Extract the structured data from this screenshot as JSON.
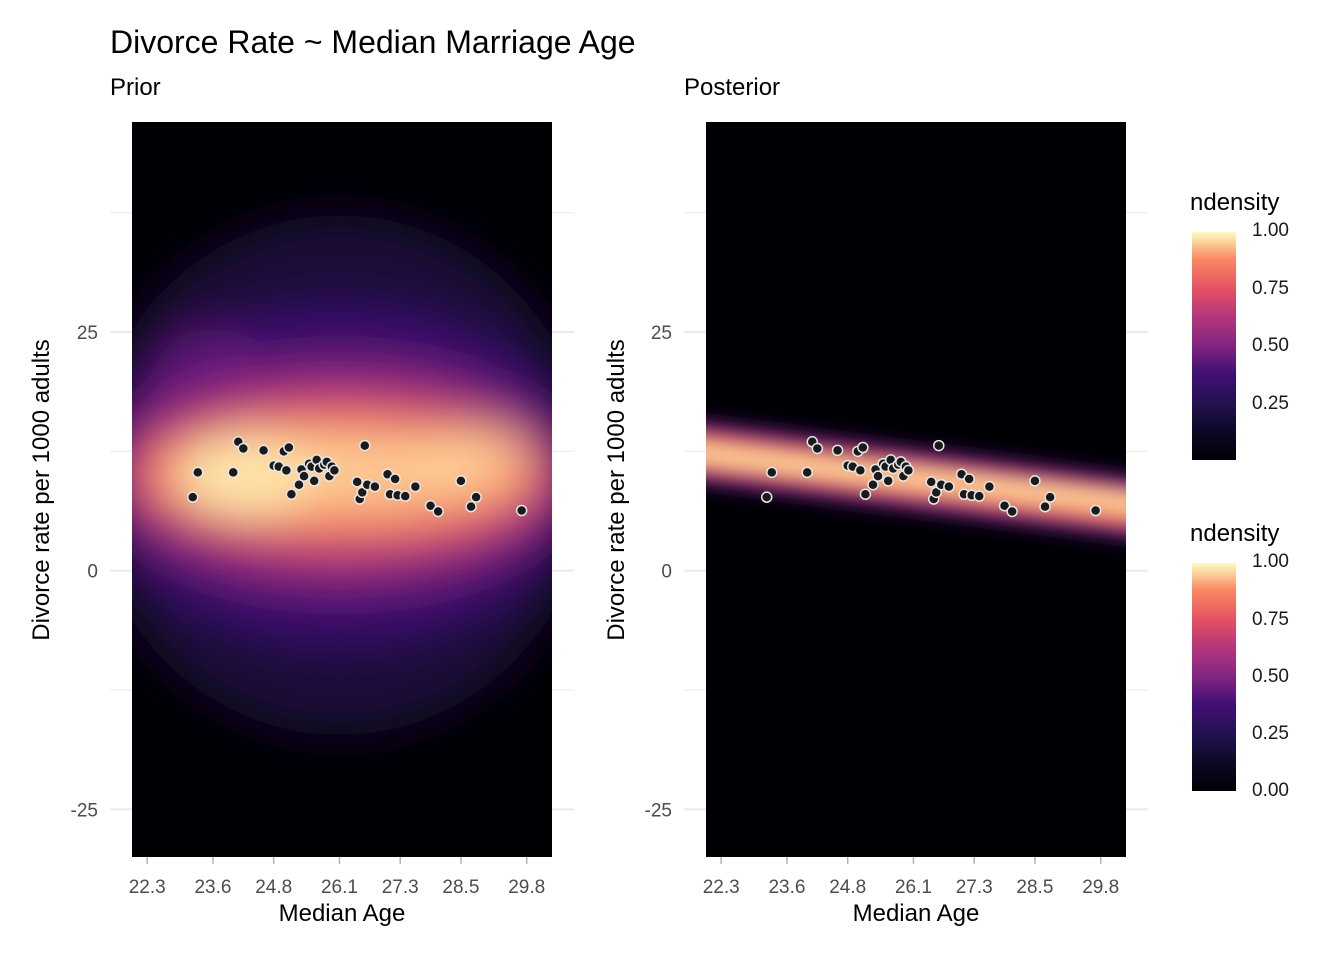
{
  "figure": {
    "title": "Divorce Rate ~ Median Marriage Age"
  },
  "colors": {
    "palette": "magma",
    "point_fill": "#1a1a1a",
    "point_stroke": "#e6e6e6",
    "grid": "#ebebeb"
  },
  "chart_data": [
    {
      "type": "heatmap",
      "title": "Prior",
      "xlabel": "Median Age",
      "ylabel": "Divorce rate per 1000 adults",
      "x_ticks": [
        "22.3",
        "23.6",
        "24.8",
        "26.1",
        "27.3",
        "28.5",
        "29.8"
      ],
      "y_ticks": [
        "25",
        "0",
        "-25"
      ],
      "xlim": [
        22.0,
        30.3
      ],
      "ylim": [
        -30,
        47
      ],
      "fill_scale": "ndensity",
      "density_description": "broad density centered near y=10, spread from about -20 to 35",
      "points": "observed"
    },
    {
      "type": "heatmap",
      "title": "Posterior",
      "xlabel": "Median Age",
      "ylabel": "Divorce rate per 1000 adults",
      "x_ticks": [
        "22.3",
        "23.6",
        "24.8",
        "26.1",
        "27.3",
        "28.5",
        "29.8"
      ],
      "y_ticks": [
        "25",
        "0",
        "-25"
      ],
      "xlim": [
        22.0,
        30.3
      ],
      "ylim": [
        -30,
        47
      ],
      "fill_scale": "ndensity",
      "density_description": "narrow band declining from y=12.5 at x=22.3 to y=6.5 at x=30.3",
      "points": "observed"
    }
  ],
  "observed_points": [
    [
      23.2,
      7.7
    ],
    [
      23.3,
      10.3
    ],
    [
      24.0,
      10.3
    ],
    [
      24.1,
      13.5
    ],
    [
      24.2,
      12.8
    ],
    [
      24.6,
      12.6
    ],
    [
      24.8,
      11.0
    ],
    [
      24.9,
      10.9
    ],
    [
      25.0,
      12.5
    ],
    [
      25.05,
      10.5
    ],
    [
      25.1,
      12.9
    ],
    [
      25.15,
      8.0
    ],
    [
      25.3,
      9.0
    ],
    [
      25.35,
      10.6
    ],
    [
      25.4,
      9.9
    ],
    [
      25.5,
      11.2
    ],
    [
      25.55,
      10.9
    ],
    [
      25.6,
      9.4
    ],
    [
      25.65,
      11.6
    ],
    [
      25.7,
      10.7
    ],
    [
      25.8,
      11.1
    ],
    [
      25.85,
      11.4
    ],
    [
      25.9,
      9.9
    ],
    [
      25.95,
      10.9
    ],
    [
      26.0,
      10.5
    ],
    [
      26.45,
      9.3
    ],
    [
      26.5,
      7.5
    ],
    [
      26.55,
      8.2
    ],
    [
      26.6,
      13.1
    ],
    [
      26.65,
      9.0
    ],
    [
      26.8,
      8.8
    ],
    [
      27.05,
      10.1
    ],
    [
      27.1,
      8.0
    ],
    [
      27.2,
      9.6
    ],
    [
      27.25,
      7.9
    ],
    [
      27.4,
      7.8
    ],
    [
      27.6,
      8.8
    ],
    [
      27.9,
      6.8
    ],
    [
      28.05,
      6.2
    ],
    [
      28.5,
      9.4
    ],
    [
      28.7,
      6.7
    ],
    [
      28.8,
      7.7
    ],
    [
      29.7,
      6.3
    ]
  ],
  "legend": {
    "top": {
      "title": "ndensity",
      "labels": [
        "1.00",
        "0.75",
        "0.50",
        "0.25"
      ]
    },
    "bottom": {
      "title": "ndensity",
      "labels": [
        "1.00",
        "0.75",
        "0.50",
        "0.25",
        "0.00"
      ]
    }
  }
}
